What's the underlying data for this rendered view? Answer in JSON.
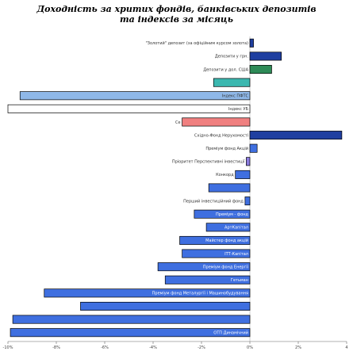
{
  "chart_data": {
    "type": "bar",
    "orientation": "horizontal",
    "title_line1": "Доходність за хрuтих фондів, банківських депозитів",
    "title_line2": "та індексів за місяць",
    "xlim": [
      -10,
      4
    ],
    "x_ticks": [
      "-10%",
      "-8%",
      "-6%",
      "-4%",
      "-2%",
      "0%",
      "2%",
      "4"
    ],
    "grid": false,
    "legend": "none",
    "colors": {
      "dark_blue": "#1F3FA0",
      "blue": "#3F6FE0",
      "green": "#2E8B57",
      "teal": "#3CB8B0",
      "light_blue": "#8FB8E8",
      "white": "#FFFFFF",
      "salmon": "#F08080",
      "violet": "#8C7CE0"
    },
    "bars": [
      {
        "label": "\"Золотий\" депозит (за офіційним курсом золота)",
        "value": 0.15,
        "color": "dark_blue",
        "label_pos": "outside"
      },
      {
        "label": "Депозити у грн.",
        "value": 1.3,
        "color": "dark_blue",
        "label_pos": "outside"
      },
      {
        "label": "Депозити у дол. США",
        "value": 0.9,
        "color": "green",
        "label_pos": "outside"
      },
      {
        "label": "",
        "value": -1.5,
        "color": "teal",
        "label_pos": "outside"
      },
      {
        "label": "Індекс ПФТС",
        "value": -9.5,
        "color": "light_blue",
        "label_pos": "inside"
      },
      {
        "label": "Індекс УБ",
        "value": -10.0,
        "color": "white",
        "label_pos": "inside"
      },
      {
        "label": "Се",
        "value": -2.8,
        "color": "salmon",
        "label_pos": "outside"
      },
      {
        "label": "Східно-Фонд Нерухомості",
        "value": 3.8,
        "color": "dark_blue",
        "label_pos": "outside"
      },
      {
        "label": "Преміум фонд Акцій",
        "value": 0.3,
        "color": "blue",
        "label_pos": "outside"
      },
      {
        "label": "Пріоритет Перспективні інвестиції",
        "value": -0.15,
        "color": "violet",
        "label_pos": "outside"
      },
      {
        "label": "Конкорд",
        "value": -0.6,
        "color": "blue",
        "label_pos": "outside"
      },
      {
        "label": "",
        "value": -1.7,
        "color": "blue",
        "label_pos": "outside"
      },
      {
        "label": "Перший інвестиційний фонд",
        "value": -0.2,
        "color": "blue",
        "label_pos": "outside"
      },
      {
        "label": "Преміум - фонд",
        "value": -2.3,
        "color": "blue",
        "label_pos": "inside"
      },
      {
        "label": "АртКапітал",
        "value": -1.8,
        "color": "blue",
        "label_pos": "inside"
      },
      {
        "label": "Майстер фонд акцій",
        "value": -2.9,
        "color": "blue",
        "label_pos": "inside"
      },
      {
        "label": "ІТТ-Капітал",
        "value": -2.8,
        "color": "blue",
        "label_pos": "inside"
      },
      {
        "label": "Преміум фонд Енергії",
        "value": -3.8,
        "color": "blue",
        "label_pos": "inside"
      },
      {
        "label": "Гетьман",
        "value": -3.5,
        "color": "blue",
        "label_pos": "inside"
      },
      {
        "label": "Преміум фонд Металургії і Машинобудування",
        "value": -8.5,
        "color": "blue",
        "label_pos": "inside"
      },
      {
        "label": "",
        "value": -7.0,
        "color": "blue",
        "label_pos": "inside"
      },
      {
        "label": "",
        "value": -9.8,
        "color": "blue",
        "label_pos": "inside"
      },
      {
        "label": "ОТП Динамічний",
        "value": -9.9,
        "color": "blue",
        "label_pos": "inside"
      }
    ]
  }
}
